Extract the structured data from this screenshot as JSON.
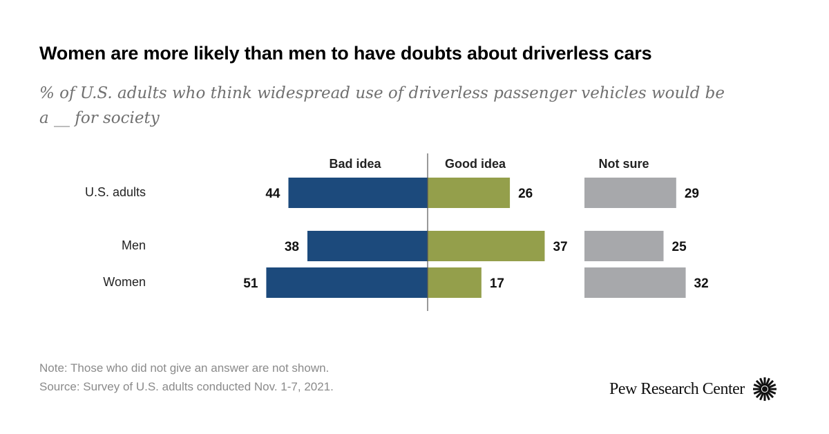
{
  "title": "Women are more likely than men to have doubts about driverless cars",
  "subtitle": "% of U.S. adults who think widespread use of driverless passenger vehicles would be a __ for society",
  "note": "Note: Those who did not give an answer are not shown.",
  "source": "Source: Survey of U.S. adults conducted Nov. 1-7, 2021.",
  "logo": {
    "text": "Pew Research Center",
    "icon": "pew-sunburst-icon"
  },
  "chart_data": {
    "type": "bar",
    "orientation": "horizontal diverging",
    "categories": [
      "U.S. adults",
      "Men",
      "Women"
    ],
    "series": [
      {
        "name": "Bad idea",
        "values": [
          44,
          38,
          51
        ],
        "color": "#1c4a7c"
      },
      {
        "name": "Good idea",
        "values": [
          26,
          37,
          17
        ],
        "color": "#949f4b"
      },
      {
        "name": "Not sure",
        "values": [
          29,
          25,
          32
        ],
        "color": "#a7a8ab"
      }
    ],
    "xlabel": "",
    "ylabel": "",
    "grid": false,
    "data_labels": true
  }
}
